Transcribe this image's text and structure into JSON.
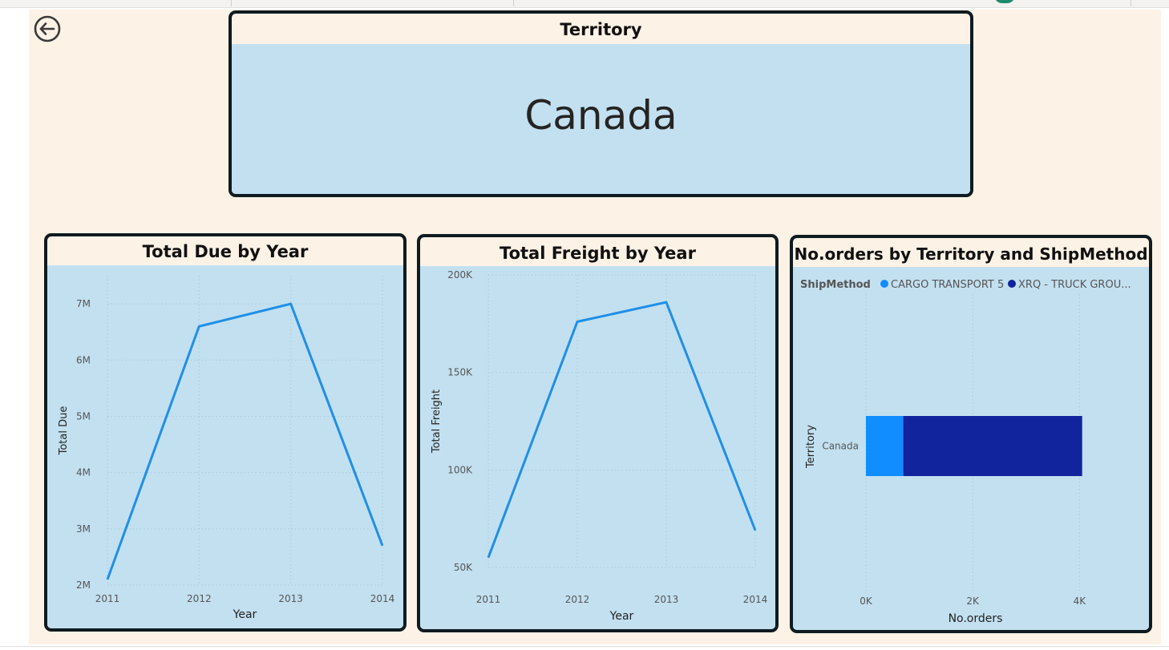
{
  "territory_card": {
    "title": "Territory",
    "value": "Canada"
  },
  "colors": {
    "line": "#1f8fe8",
    "cargo": "#118dff",
    "truck": "#12239e",
    "plot_bg": "#c3e0f0",
    "page_bg": "#fdf2e6",
    "border": "#0f1b20"
  },
  "chart_data": [
    {
      "type": "line",
      "title": "Total Due by Year",
      "xlabel": "Year",
      "ylabel": "Total Due",
      "x": [
        "2011",
        "2012",
        "2013",
        "2014"
      ],
      "series": [
        {
          "values": [
            2100000,
            6600000,
            7000000,
            2700000
          ]
        }
      ],
      "ylim": [
        2000000,
        7500000
      ],
      "yticks": [
        2000000,
        3000000,
        4000000,
        5000000,
        6000000,
        7000000
      ],
      "ytick_labels": [
        "2M",
        "3M",
        "4M",
        "5M",
        "6M",
        "7M"
      ],
      "grid": true
    },
    {
      "type": "line",
      "title": "Total Freight by Year",
      "xlabel": "Year",
      "ylabel": "Total Freight",
      "x": [
        "2011",
        "2012",
        "2013",
        "2014"
      ],
      "series": [
        {
          "values": [
            55000,
            176000,
            186000,
            69000
          ]
        }
      ],
      "ylim": [
        50000,
        200000
      ],
      "yticks": [
        50000,
        100000,
        150000,
        200000
      ],
      "ytick_labels": [
        "50K",
        "100K",
        "150K",
        "200K"
      ],
      "grid": true
    },
    {
      "type": "bar",
      "orientation": "horizontal",
      "stacked": true,
      "title": "No.orders by Territory and ShipMethod",
      "xlabel": "No.orders",
      "ylabel": "Territory",
      "legend_title": "ShipMethod",
      "legend_position": "top-left",
      "categories": [
        "Canada"
      ],
      "series": [
        {
          "name": "CARGO TRANSPORT 5",
          "values": [
            700
          ]
        },
        {
          "name": "XRQ - TRUCK GROU...",
          "values": [
            3350
          ]
        }
      ],
      "xlim": [
        0,
        4400
      ],
      "xticks": [
        0,
        2000,
        4000
      ],
      "xtick_labels": [
        "0K",
        "2K",
        "4K"
      ],
      "grid": true
    }
  ]
}
